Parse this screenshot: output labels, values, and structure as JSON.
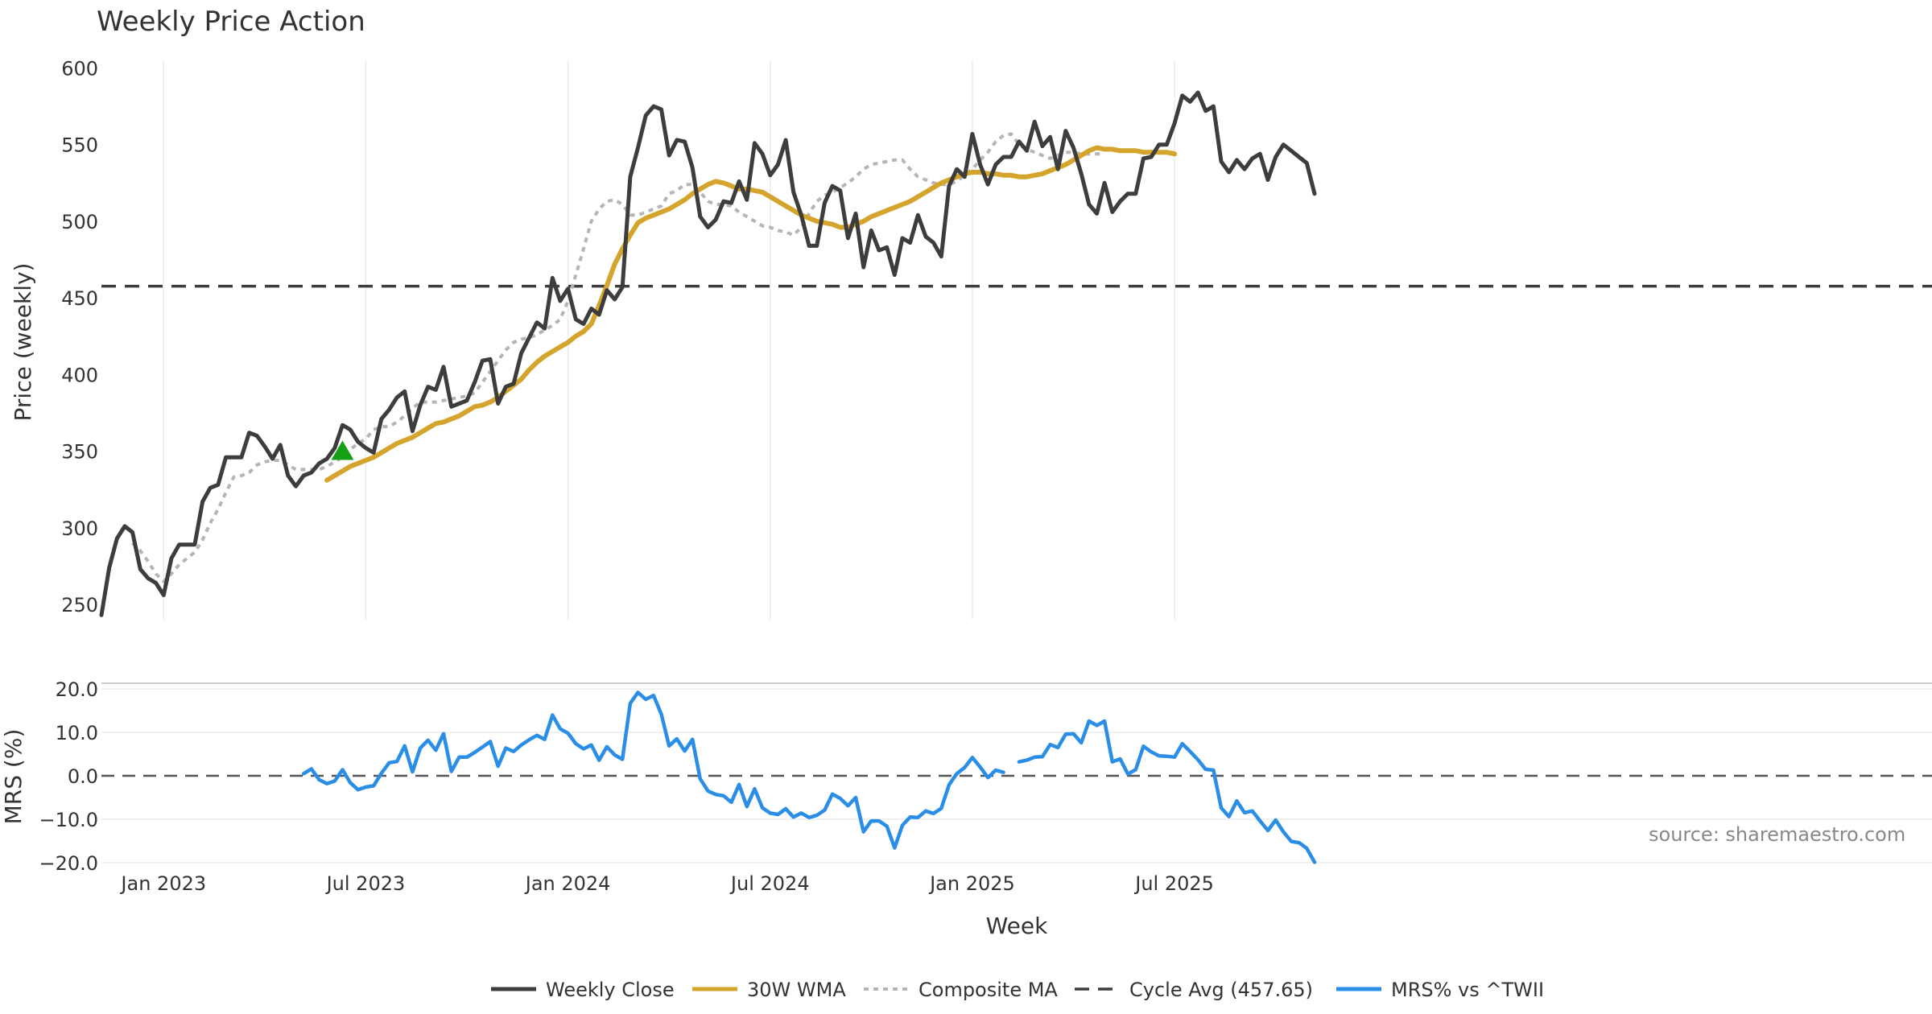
{
  "chart_data": {
    "type": "line",
    "title": "Weekly Price Action",
    "xlabel": "Week",
    "ylabel_price": "Price (weekly)",
    "ylabel_mrs": "MRS (%)",
    "price_ylim": [
      240,
      605
    ],
    "mrs_ylim": [
      -21.5,
      21.5
    ],
    "x_tick_labels": [
      "Jan 2023",
      "Jul 2023",
      "Jan 2024",
      "Jul 2024",
      "Jan 2025",
      "Jul 2025"
    ],
    "x_tick_weeks": [
      8,
      34,
      60,
      86,
      112,
      138
    ],
    "price_ticks": [
      250,
      300,
      350,
      400,
      450,
      500,
      550,
      600
    ],
    "mrs_ticks": [
      20,
      10,
      0,
      -10,
      -20
    ],
    "mrs_tick_labels": [
      "20.0",
      "10.0",
      "0.0",
      "−10.0",
      "−20.0"
    ],
    "cycle_avg": 457.65,
    "series": {
      "weekly_close": {
        "name": "Weekly Close",
        "color": "#3d3d3d",
        "start_week": 0,
        "values": [
          243,
          274,
          293,
          301,
          297,
          273,
          267,
          264,
          256,
          280,
          289,
          289,
          289,
          317,
          326,
          328,
          346,
          346,
          346,
          362,
          360,
          353,
          345,
          354,
          334,
          327,
          334,
          336,
          342,
          345,
          352,
          367,
          364,
          356,
          352,
          349,
          371,
          377,
          385,
          389,
          363,
          380,
          392,
          390,
          405,
          379,
          381,
          383,
          395,
          409,
          410,
          381,
          392,
          394,
          414,
          424,
          434,
          430,
          463,
          448,
          456,
          436,
          433,
          443,
          439,
          455,
          449,
          457,
          529,
          548,
          569,
          575,
          573,
          543,
          553,
          552,
          535,
          503,
          496,
          501,
          513,
          512,
          526,
          514,
          551,
          544,
          530,
          537,
          553,
          519,
          504,
          484,
          484,
          512,
          523,
          520,
          489,
          505,
          470,
          494,
          481,
          483,
          465,
          489,
          486,
          504,
          490,
          486,
          477,
          523,
          534,
          529,
          557,
          537,
          524,
          537,
          542,
          542,
          552,
          546,
          565,
          549,
          555,
          534,
          559,
          548,
          531,
          511,
          505,
          525,
          506,
          513,
          518,
          518,
          541,
          542,
          550,
          550,
          564,
          582,
          578,
          584,
          572,
          575,
          539,
          532,
          540,
          534,
          541,
          544,
          527,
          542,
          550,
          546,
          542,
          538,
          518
        ]
      },
      "wma_30": {
        "name": "30W WMA",
        "color": "#d4a42c",
        "start_week": 29,
        "values": [
          331,
          334,
          337,
          340,
          342,
          344,
          346,
          349,
          352,
          355,
          357,
          359,
          362,
          365,
          368,
          369,
          371,
          373,
          376,
          379,
          380,
          382,
          385,
          389,
          393,
          397,
          403,
          408,
          412,
          415,
          418,
          421,
          425,
          428,
          433,
          445,
          458,
          472,
          482,
          491,
          499,
          502,
          504,
          506,
          508,
          511,
          514,
          518,
          521,
          524,
          526,
          525,
          523,
          521,
          521,
          520,
          519,
          516,
          513,
          510,
          507,
          504,
          502,
          500,
          499,
          498,
          496,
          496,
          498,
          500,
          503,
          505,
          507,
          509,
          511,
          513,
          516,
          519,
          522,
          525,
          527,
          529,
          531,
          532,
          532,
          531,
          531,
          530,
          530,
          529,
          529,
          530,
          531,
          533,
          535,
          537,
          540,
          543,
          546,
          548,
          547,
          547,
          546,
          546,
          546,
          545,
          545,
          545,
          545,
          544
        ]
      },
      "composite_ma": {
        "name": "Composite MA",
        "color": "#b5b5b5",
        "start_week": 4,
        "values": [
          290,
          285,
          278,
          270,
          265,
          270,
          276,
          280,
          284,
          292,
          303,
          312,
          323,
          333,
          334,
          336,
          341,
          343,
          344,
          344,
          341,
          338,
          338,
          338,
          338,
          340,
          343,
          346,
          351,
          355,
          358,
          364,
          366,
          366,
          369,
          373,
          378,
          382,
          382,
          382,
          383,
          384,
          385,
          386,
          388,
          395,
          402,
          409,
          416,
          421,
          423,
          424,
          426,
          429,
          432,
          436,
          448,
          465,
          482,
          500,
          508,
          513,
          514,
          511,
          504,
          504,
          506,
          508,
          510,
          518,
          520,
          524,
          524,
          519,
          513,
          511,
          511,
          510,
          506,
          503,
          500,
          497,
          496,
          494,
          493,
          491,
          496,
          505,
          513,
          517,
          519,
          522,
          525,
          529,
          534,
          537,
          538,
          539,
          540,
          540,
          534,
          529,
          527,
          525,
          524,
          524,
          526,
          530,
          534,
          540,
          545,
          552,
          556,
          557,
          550,
          547,
          545,
          543,
          541,
          543,
          545,
          545,
          544,
          544,
          544,
          544
        ]
      },
      "mrs": {
        "name": "MRS% vs ^TWII",
        "color": "#2b8ee6",
        "start_week": 26,
        "values": [
          0.5,
          1.6,
          -0.9,
          -1.8,
          -1.2,
          1.4,
          -1.6,
          -3.2,
          -2.6,
          -2.3,
          0.6,
          3.0,
          3.3,
          6.9,
          0.9,
          6.4,
          8.2,
          5.9,
          9.7,
          1.0,
          4.3,
          4.3,
          5.4,
          6.6,
          7.9,
          2.2,
          6.4,
          5.6,
          7.1,
          8.3,
          9.3,
          8.4,
          14.0,
          10.8,
          9.8,
          7.4,
          6.2,
          7.1,
          3.6,
          6.7,
          4.8,
          3.8,
          16.7,
          19.2,
          17.6,
          18.5,
          14.2,
          6.9,
          8.5,
          5.7,
          8.4,
          -0.7,
          -3.5,
          -4.3,
          -4.6,
          -6.1,
          -2.0,
          -7.1,
          -3.0,
          -7.4,
          -8.6,
          -8.9,
          -7.6,
          -9.5,
          -8.6,
          -9.6,
          -9.1,
          -7.9,
          -4.2,
          -5.2,
          -6.9,
          -5.0,
          -12.9,
          -10.4,
          -10.4,
          -11.6,
          -16.6,
          -11.4,
          -9.5,
          -9.6,
          -8.1,
          -8.7,
          -7.5,
          -2.1,
          0.5,
          1.9,
          4.2,
          2.0,
          -0.4,
          1.3,
          0.8,
          null,
          3.2,
          3.6,
          4.3,
          4.4,
          7.2,
          6.5,
          9.6,
          9.7,
          7.6,
          12.6,
          11.6,
          12.6,
          3.2,
          3.9,
          0.4,
          1.4,
          6.8,
          5.5,
          4.6,
          4.5,
          4.3,
          7.4,
          5.6,
          3.7,
          1.5,
          1.3,
          -7.4,
          -9.4,
          -5.8,
          -8.5,
          -8.1,
          -10.4,
          -12.6,
          -10.2,
          -12.9,
          -15.1,
          -15.4,
          -16.7,
          -19.9
        ]
      }
    },
    "markers": [
      {
        "type": "triangle-up",
        "week": 31,
        "value": 350,
        "color": "#14a014"
      }
    ],
    "legend": {
      "position": "bottom-center",
      "entries": [
        {
          "label": "Weekly Close",
          "style": "solid",
          "color": "#3d3d3d"
        },
        {
          "label": "30W WMA",
          "style": "solid",
          "color": "#d4a42c"
        },
        {
          "label": "Composite MA",
          "style": "dotted",
          "color": "#b5b5b5"
        },
        {
          "label": "Cycle Avg (457.65)",
          "style": "dashed",
          "color": "#3d3d3d"
        },
        {
          "label": "MRS% vs ^TWII",
          "style": "solid",
          "color": "#2b8ee6"
        }
      ]
    },
    "source": "source: sharemaestro.com"
  }
}
